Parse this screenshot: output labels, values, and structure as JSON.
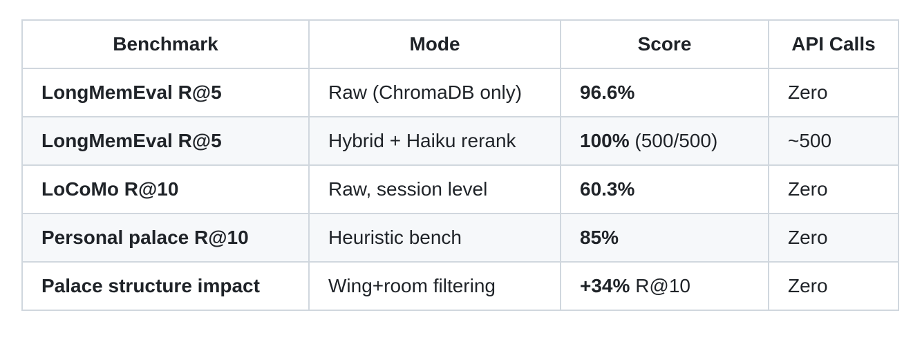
{
  "table": {
    "header": [
      "Benchmark",
      "Mode",
      "Score",
      "API Calls"
    ],
    "rows": [
      [
        "LongMemEval R@5",
        "Raw (ChromaDB only)",
        {
          "strong": "96.6%"
        },
        "Zero"
      ],
      [
        "LongMemEval R@5",
        "Hybrid + Haiku rerank",
        {
          "strong": "100%",
          "text": "(500/500)"
        },
        "~500"
      ],
      [
        "LoCoMo R@10",
        "Raw, session level",
        {
          "strong": "60.3%"
        },
        "Zero"
      ],
      [
        "Personal palace R@10",
        "Heuristic bench",
        {
          "strong": "85%"
        },
        "Zero"
      ],
      [
        "Palace structure impact",
        "Wing+room filtering",
        {
          "strong": "+34%",
          "text": "R@10"
        },
        "Zero"
      ]
    ]
  }
}
